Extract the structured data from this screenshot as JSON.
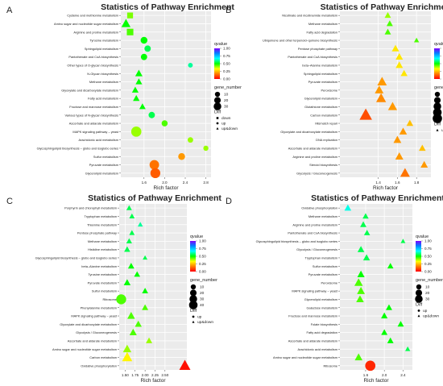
{
  "figure": {
    "background": "#ffffff"
  },
  "colorscale": [
    "#ff0000",
    "#ff8000",
    "#ffff00",
    "#00ff00",
    "#00ffff",
    "#0080ff",
    "#8000ff"
  ],
  "chart_data": [
    {
      "type": "scatter",
      "panel_label": "A",
      "title": "Statistics of Pathway Enrichment",
      "xlabel": "Rich factor",
      "xlim": [
        1.15,
        2.9
      ],
      "xticks": [
        1.6,
        2.0,
        2.4,
        2.8
      ],
      "xtick_labels": [
        "1.6",
        "2.0",
        "2.4",
        "2.8"
      ],
      "qvalue_legend": {
        "title": "qvalue",
        "ticks": [
          "1.00",
          "0.75",
          "0.50",
          "0.25",
          "0.00"
        ]
      },
      "size_legend": {
        "title": "gene_number",
        "sizes": [
          10,
          20,
          30
        ]
      },
      "diff_legend": {
        "title": "Diff",
        "items": [
          "down",
          "up",
          "up&down"
        ]
      },
      "categories": [
        "Cysteine and methionine metabolism",
        "Amino sugar and nucleotide sugar metabolism",
        "Arginine and proline metabolism",
        "Tyrosine metabolism",
        "Sphingolipid metabolism",
        "Pantothenate and CoA biosynthesis",
        "Other types of O-glycan biosynthesis",
        "N-Glycan biosynthesis",
        "Methane metabolism",
        "Glyoxylate and dicarboxylate metabolism",
        "Fatty acid metabolism",
        "Fructose and mannose metabolism",
        "Various types of N-glycan biosynthesis",
        "Ascorbate and aldarate metabolism",
        "MAPK signaling pathway – yeast",
        "Arachidonic acid metabolism",
        "Glycosphingolipid biosynthesis – globo and isoglobo series",
        "Sulfur metabolism",
        "Pyruvate metabolism",
        "Glycerolipid metabolism"
      ],
      "points": [
        {
          "x": 1.33,
          "q": 0.42,
          "n": 10,
          "shape": "down"
        },
        {
          "x": 1.25,
          "q": 0.5,
          "n": 22,
          "shape": "updown"
        },
        {
          "x": 1.33,
          "q": 0.45,
          "n": 14,
          "shape": "down"
        },
        {
          "x": 1.6,
          "q": 0.5,
          "n": 10,
          "shape": "up"
        },
        {
          "x": 1.67,
          "q": 0.55,
          "n": 8,
          "shape": "up"
        },
        {
          "x": 1.6,
          "q": 0.5,
          "n": 8,
          "shape": "up"
        },
        {
          "x": 2.5,
          "q": 0.6,
          "n": 3,
          "shape": "up"
        },
        {
          "x": 1.5,
          "q": 0.5,
          "n": 12,
          "shape": "updown"
        },
        {
          "x": 1.5,
          "q": 0.5,
          "n": 9,
          "shape": "updown"
        },
        {
          "x": 1.43,
          "q": 0.5,
          "n": 9,
          "shape": "updown"
        },
        {
          "x": 1.45,
          "q": 0.5,
          "n": 9,
          "shape": "updown"
        },
        {
          "x": 1.57,
          "q": 0.5,
          "n": 8,
          "shape": "updown"
        },
        {
          "x": 1.75,
          "q": 0.55,
          "n": 8,
          "shape": "up"
        },
        {
          "x": 2.0,
          "q": 0.45,
          "n": 7,
          "shape": "up"
        },
        {
          "x": 1.45,
          "q": 0.4,
          "n": 30,
          "shape": "up"
        },
        {
          "x": 2.5,
          "q": 0.4,
          "n": 5,
          "shape": "up"
        },
        {
          "x": 2.8,
          "q": 0.4,
          "n": 4,
          "shape": "up"
        },
        {
          "x": 2.33,
          "q": 0.2,
          "n": 10,
          "shape": "up"
        },
        {
          "x": 1.8,
          "q": 0.15,
          "n": 25,
          "shape": "up"
        },
        {
          "x": 1.82,
          "q": 0.12,
          "n": 28,
          "shape": "up"
        }
      ]
    },
    {
      "type": "scatter",
      "panel_label": "B",
      "title": "Statistics of Pathway Enrichment",
      "xlabel": "Rich factor",
      "xlim": [
        1.0,
        1.95
      ],
      "xticks": [
        1.4,
        1.6,
        1.8
      ],
      "xtick_labels": [
        "1.4",
        "1.6",
        "1.8"
      ],
      "qvalue_legend": {
        "title": "qvalue",
        "ticks": [
          "1.00",
          "0.75",
          "0.50",
          "0.25",
          "0.00"
        ]
      },
      "size_legend": {
        "title": "gene_number",
        "sizes": [
          10,
          20,
          30,
          40,
          50
        ]
      },
      "diff_legend": {
        "title": "Diff",
        "items": [
          "up&down"
        ]
      },
      "categories": [
        "Nicotinate and nicotinamide metabolism",
        "Methane metabolism",
        "Fatty acid degradation",
        "Ubiquinone and other terpenoid–quinone biosynthesis",
        "Pentose phosphate pathway",
        "Pantothenate and CoA biosynthesis",
        "beta–Alanine metabolism",
        "Sphingolipid metabolism",
        "Pyruvate metabolism",
        "Peroxisome",
        "Glycerolipid metabolism",
        "Glutathione metabolism",
        "Carbon metabolism",
        "Mismatch repair",
        "Glyoxylate and dicarboxylate metabolism",
        "DNA replication",
        "Ascorbate and aldarate metabolism",
        "Arginine and proline metabolism",
        "Steroid biosynthesis",
        "Glycolysis / Gluconeogenesis"
      ],
      "points": [
        {
          "x": 1.5,
          "q": 0.4,
          "n": 8,
          "shape": "updown"
        },
        {
          "x": 1.52,
          "q": 0.45,
          "n": 8,
          "shape": "updown"
        },
        {
          "x": 1.5,
          "q": 0.45,
          "n": 8,
          "shape": "updown"
        },
        {
          "x": 1.8,
          "q": 0.45,
          "n": 4,
          "shape": "updown"
        },
        {
          "x": 1.58,
          "q": 0.3,
          "n": 12,
          "shape": "updown"
        },
        {
          "x": 1.62,
          "q": 0.3,
          "n": 12,
          "shape": "updown"
        },
        {
          "x": 1.62,
          "q": 0.3,
          "n": 12,
          "shape": "updown"
        },
        {
          "x": 1.67,
          "q": 0.3,
          "n": 10,
          "shape": "updown"
        },
        {
          "x": 1.44,
          "q": 0.2,
          "n": 25,
          "shape": "updown"
        },
        {
          "x": 1.41,
          "q": 0.2,
          "n": 20,
          "shape": "updown"
        },
        {
          "x": 1.43,
          "q": 0.18,
          "n": 28,
          "shape": "updown"
        },
        {
          "x": 1.55,
          "q": 0.2,
          "n": 22,
          "shape": "updown"
        },
        {
          "x": 1.27,
          "q": 0.1,
          "n": 50,
          "shape": "updown"
        },
        {
          "x": 1.73,
          "q": 0.25,
          "n": 10,
          "shape": "updown"
        },
        {
          "x": 1.66,
          "q": 0.2,
          "n": 14,
          "shape": "updown"
        },
        {
          "x": 1.6,
          "q": 0.2,
          "n": 15,
          "shape": "updown"
        },
        {
          "x": 1.86,
          "q": 0.25,
          "n": 10,
          "shape": "updown"
        },
        {
          "x": 1.62,
          "q": 0.2,
          "n": 16,
          "shape": "updown"
        },
        {
          "x": 1.88,
          "q": 0.2,
          "n": 12,
          "shape": "updown"
        },
        {
          "x": 1.68,
          "q": 0.15,
          "n": 26,
          "shape": "updown"
        }
      ]
    },
    {
      "type": "scatter",
      "panel_label": "C",
      "title": "Statistics of Pathway Enrichment",
      "xlabel": "Rich factor",
      "xlim": [
        1.35,
        3.05
      ],
      "xticks": [
        1.5,
        1.75,
        2.0,
        2.25,
        2.5
      ],
      "xtick_labels": [
        "1.50",
        "1.75",
        "2.00",
        "2.25",
        "2.50"
      ],
      "qvalue_legend": {
        "title": "qvalue",
        "ticks": [
          "1.00",
          "0.75",
          "0.50",
          "0.25",
          "0.00"
        ]
      },
      "size_legend": {
        "title": "gene_number",
        "sizes": [
          10,
          20,
          30,
          40
        ]
      },
      "diff_legend": {
        "title": "Diff",
        "items": [
          "up",
          "up&down"
        ]
      },
      "categories": [
        "Porphyrin and chlorophyll metabolism",
        "Tryptophan metabolism",
        "Thiamine metabolism",
        "Pentose phosphate pathway",
        "Methane metabolism",
        "Histidine metabolism",
        "Glycosphingolipid biosynthesis – globo and isoglobo series",
        "beta–Alanine metabolism",
        "Tyrosine metabolism",
        "Pyruvate metabolism",
        "Sulfur metabolism",
        "Ribosome",
        "Phenylalanine metabolism",
        "MAPK signaling pathway – yeast",
        "Glyoxylate and dicarboxylate metabolism",
        "Glycolysis / Gluconeogenesis",
        "Ascorbate and aldarate metabolism",
        "Amino sugar and nucleotide sugar metabolism",
        "Carbon metabolism",
        "Oxidative phosphorylation"
      ],
      "points": [
        {
          "x": 1.6,
          "q": 0.55,
          "n": 5,
          "shape": "updown"
        },
        {
          "x": 1.67,
          "q": 0.55,
          "n": 5,
          "shape": "updown"
        },
        {
          "x": 1.88,
          "q": 0.6,
          "n": 4,
          "shape": "updown"
        },
        {
          "x": 1.67,
          "q": 0.55,
          "n": 5,
          "shape": "updown"
        },
        {
          "x": 1.6,
          "q": 0.55,
          "n": 6,
          "shape": "updown"
        },
        {
          "x": 1.55,
          "q": 0.55,
          "n": 7,
          "shape": "updown"
        },
        {
          "x": 2.0,
          "q": 0.55,
          "n": 3,
          "shape": "updown"
        },
        {
          "x": 1.65,
          "q": 0.5,
          "n": 8,
          "shape": "updown"
        },
        {
          "x": 1.8,
          "q": 0.5,
          "n": 7,
          "shape": "updown"
        },
        {
          "x": 1.55,
          "q": 0.5,
          "n": 10,
          "shape": "updown"
        },
        {
          "x": 2.0,
          "q": 0.5,
          "n": 7,
          "shape": "updown"
        },
        {
          "x": 1.4,
          "q": 0.45,
          "n": 28,
          "shape": "up"
        },
        {
          "x": 2.0,
          "q": 0.45,
          "n": 8,
          "shape": "updown"
        },
        {
          "x": 1.65,
          "q": 0.45,
          "n": 14,
          "shape": "updown"
        },
        {
          "x": 1.83,
          "q": 0.45,
          "n": 10,
          "shape": "updown"
        },
        {
          "x": 1.7,
          "q": 0.45,
          "n": 12,
          "shape": "updown"
        },
        {
          "x": 2.1,
          "q": 0.4,
          "n": 8,
          "shape": "updown"
        },
        {
          "x": 1.55,
          "q": 0.4,
          "n": 18,
          "shape": "updown"
        },
        {
          "x": 1.55,
          "q": 0.32,
          "n": 30,
          "shape": "updown"
        },
        {
          "x": 3.0,
          "q": 0.02,
          "n": 38,
          "shape": "updown"
        }
      ]
    },
    {
      "type": "scatter",
      "panel_label": "D",
      "title": "Statistics of Pathway Enrichment",
      "xlabel": "Rich factor",
      "xlim": [
        1.05,
        2.6
      ],
      "xticks": [
        1.6,
        2.0,
        2.4
      ],
      "xtick_labels": [
        "1.6",
        "2.0",
        "2.4"
      ],
      "qvalue_legend": {
        "title": "qvalue",
        "ticks": [
          "1.00",
          "0.75",
          "0.50",
          "0.25",
          "0.00"
        ]
      },
      "size_legend": {
        "title": "gene_number",
        "sizes": [
          10,
          20,
          30
        ]
      },
      "diff_legend": {
        "title": "Diff",
        "items": [
          "up",
          "up&down"
        ]
      },
      "categories": [
        "Oxidative phosphorylation",
        "Methane metabolism",
        "Arginine and proline metabolism",
        "Pantothenate and CoA biosynthesis",
        "Glycosphingolipid biosynthesis – globo and isoglobo series",
        "Glycolysis / Gluconeogenesis",
        "Tryptophan metabolism",
        "Sulfur metabolism",
        "Pyruvate metabolism",
        "Peroxisome",
        "MAPK signaling pathway – yeast",
        "Glycerolipid metabolism",
        "Galactose metabolism",
        "Fructose and mannose metabolism",
        "Folate biosynthesis",
        "Fatty acid degradation",
        "Ascorbate and aldarate metabolism",
        "Arachidonic acid metabolism",
        "Amino sugar and nucleotide sugar metabolism",
        "Ribosome"
      ],
      "points": [
        {
          "x": 1.22,
          "q": 0.65,
          "n": 10,
          "shape": "updown"
        },
        {
          "x": 1.6,
          "q": 0.55,
          "n": 7,
          "shape": "updown"
        },
        {
          "x": 1.55,
          "q": 0.55,
          "n": 8,
          "shape": "updown"
        },
        {
          "x": 1.63,
          "q": 0.55,
          "n": 7,
          "shape": "updown"
        },
        {
          "x": 2.4,
          "q": 0.55,
          "n": 3,
          "shape": "updown"
        },
        {
          "x": 1.5,
          "q": 0.55,
          "n": 10,
          "shape": "updown"
        },
        {
          "x": 1.62,
          "q": 0.55,
          "n": 10,
          "shape": "updown"
        },
        {
          "x": 2.13,
          "q": 0.5,
          "n": 7,
          "shape": "updown"
        },
        {
          "x": 1.5,
          "q": 0.5,
          "n": 12,
          "shape": "updown"
        },
        {
          "x": 1.45,
          "q": 0.45,
          "n": 18,
          "shape": "updown"
        },
        {
          "x": 1.5,
          "q": 0.45,
          "n": 15,
          "shape": "updown"
        },
        {
          "x": 1.48,
          "q": 0.45,
          "n": 14,
          "shape": "updown"
        },
        {
          "x": 2.1,
          "q": 0.5,
          "n": 8,
          "shape": "updown"
        },
        {
          "x": 2.0,
          "q": 0.5,
          "n": 9,
          "shape": "updown"
        },
        {
          "x": 2.35,
          "q": 0.5,
          "n": 8,
          "shape": "updown"
        },
        {
          "x": 2.0,
          "q": 0.5,
          "n": 8,
          "shape": "updown"
        },
        {
          "x": 2.13,
          "q": 0.5,
          "n": 8,
          "shape": "updown"
        },
        {
          "x": 2.5,
          "q": 0.55,
          "n": 4,
          "shape": "updown"
        },
        {
          "x": 1.45,
          "q": 0.45,
          "n": 14,
          "shape": "updown"
        },
        {
          "x": 1.7,
          "q": 0.05,
          "n": 30,
          "shape": "up"
        }
      ]
    }
  ]
}
